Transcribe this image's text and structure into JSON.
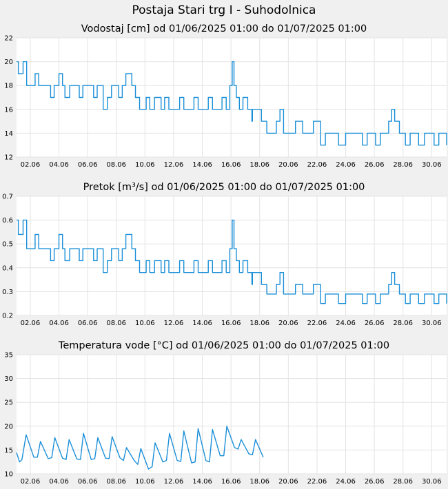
{
  "page": {
    "title": "Postaja Stari trg I - Suhodolnica"
  },
  "colors": {
    "series": "#1a8fd8",
    "grid": "#e3e3e3",
    "panel": "#ffffff",
    "background": "#f0f0f0",
    "text": "#000000"
  },
  "x_axis": {
    "start": "2025-06-01T01:00",
    "end": "2025-07-01T01:00",
    "tick_labels": [
      "02.06",
      "04.06",
      "06.06",
      "08.06",
      "10.06",
      "12.06",
      "14.06",
      "16.06",
      "18.06",
      "20.06",
      "22.06",
      "24.06",
      "26.06",
      "28.06",
      "30.06"
    ],
    "tick_dates": [
      "2025-06-02",
      "2025-06-04",
      "2025-06-06",
      "2025-06-08",
      "2025-06-10",
      "2025-06-12",
      "2025-06-14",
      "2025-06-16",
      "2025-06-18",
      "2025-06-20",
      "2025-06-22",
      "2025-06-24",
      "2025-06-26",
      "2025-06-28",
      "2025-06-30"
    ]
  },
  "chart_data": [
    {
      "type": "line",
      "title": "Vodostaj [cm] od 01/06/2025 01:00 do 01/07/2025 01:00",
      "ylim": [
        12,
        22
      ],
      "yticks": [
        12,
        14,
        16,
        18,
        20,
        22
      ],
      "grid": true,
      "step": true,
      "series": [
        {
          "x": [
            "2025-06-01T01:00",
            "2025-06-01T04:00",
            "2025-06-01T12:00",
            "2025-06-01T18:00",
            "2025-06-02T03:00",
            "2025-06-02T08:00",
            "2025-06-02T14:00",
            "2025-06-03T03:00",
            "2025-06-03T10:00",
            "2025-06-03T16:00",
            "2025-06-04T00:00",
            "2025-06-04T06:00",
            "2025-06-04T10:00",
            "2025-06-04T18:00",
            "2025-06-05T04:00",
            "2025-06-05T10:00",
            "2025-06-05T16:00",
            "2025-06-06T03:00",
            "2025-06-06T10:00",
            "2025-06-06T16:00",
            "2025-06-07T02:00",
            "2025-06-07T09:00",
            "2025-06-07T16:00",
            "2025-06-08T04:00",
            "2025-06-08T10:00",
            "2025-06-08T16:00",
            "2025-06-09T02:00",
            "2025-06-09T08:00",
            "2025-06-09T15:00",
            "2025-06-10T02:00",
            "2025-06-10T08:00",
            "2025-06-10T16:00",
            "2025-06-11T03:00",
            "2025-06-11T09:00",
            "2025-06-11T16:00",
            "2025-06-12T04:00",
            "2025-06-12T10:00",
            "2025-06-12T17:00",
            "2025-06-13T04:00",
            "2025-06-13T10:00",
            "2025-06-13T17:00",
            "2025-06-14T04:00",
            "2025-06-14T10:00",
            "2025-06-14T17:00",
            "2025-06-15T02:00",
            "2025-06-15T09:00",
            "2025-06-15T16:00",
            "2025-06-15T22:00",
            "2025-06-16T02:00",
            "2025-06-16T05:00",
            "2025-06-16T09:00",
            "2025-06-16T14:00",
            "2025-06-16T20:00",
            "2025-06-17T04:00",
            "2025-06-17T11:00",
            "2025-06-17T12:00",
            "2025-06-18T03:00",
            "2025-06-18T12:00",
            "2025-06-19T04:00",
            "2025-06-19T10:00",
            "2025-06-19T16:00",
            "2025-06-20T04:00",
            "2025-06-20T12:00",
            "2025-06-21T00:00",
            "2025-06-21T10:00",
            "2025-06-21T18:00",
            "2025-06-22T06:00",
            "2025-06-22T14:00",
            "2025-06-23T04:00",
            "2025-06-23T12:00",
            "2025-06-24T00:00",
            "2025-06-24T12:00",
            "2025-06-25T04:00",
            "2025-06-25T12:00",
            "2025-06-26T02:00",
            "2025-06-26T10:00",
            "2025-06-27T00:00",
            "2025-06-27T05:00",
            "2025-06-27T10:00",
            "2025-06-27T18:00",
            "2025-06-28T04:00",
            "2025-06-28T12:00",
            "2025-06-29T02:00",
            "2025-06-29T12:00",
            "2025-06-30T04:00",
            "2025-06-30T12:00",
            "2025-07-01T01:00"
          ],
          "values": [
            20,
            19,
            20,
            18,
            18,
            19,
            18,
            18,
            17,
            18,
            19,
            18,
            17,
            18,
            18,
            17,
            18,
            18,
            17,
            18,
            16,
            17,
            18,
            17,
            18,
            19,
            18,
            17,
            16,
            17,
            16,
            17,
            16,
            17,
            16,
            16,
            17,
            16,
            16,
            17,
            16,
            16,
            17,
            16,
            16,
            17,
            16,
            18,
            20,
            18,
            17,
            16,
            17,
            16,
            15,
            16,
            15,
            14,
            15,
            16,
            14,
            14,
            15,
            14,
            14,
            15,
            13,
            14,
            14,
            13,
            14,
            14,
            13,
            14,
            13,
            14,
            15,
            16,
            15,
            14,
            13,
            14,
            13,
            14,
            13,
            14,
            13
          ]
        }
      ]
    },
    {
      "type": "line",
      "title": "Pretok [m³/s] od 01/06/2025 01:00 do 01/07/2025 01:00",
      "ylim": [
        0.2,
        0.7
      ],
      "yticks": [
        0.2,
        0.3,
        0.4,
        0.5,
        0.6,
        0.7
      ],
      "grid": true,
      "step": true,
      "series": [
        {
          "x": [
            "2025-06-01T01:00",
            "2025-06-01T04:00",
            "2025-06-01T12:00",
            "2025-06-01T18:00",
            "2025-06-02T03:00",
            "2025-06-02T08:00",
            "2025-06-02T14:00",
            "2025-06-03T03:00",
            "2025-06-03T10:00",
            "2025-06-03T16:00",
            "2025-06-04T00:00",
            "2025-06-04T06:00",
            "2025-06-04T10:00",
            "2025-06-04T18:00",
            "2025-06-05T04:00",
            "2025-06-05T10:00",
            "2025-06-05T16:00",
            "2025-06-06T03:00",
            "2025-06-06T10:00",
            "2025-06-06T16:00",
            "2025-06-07T02:00",
            "2025-06-07T09:00",
            "2025-06-07T16:00",
            "2025-06-08T04:00",
            "2025-06-08T10:00",
            "2025-06-08T16:00",
            "2025-06-09T02:00",
            "2025-06-09T08:00",
            "2025-06-09T15:00",
            "2025-06-10T02:00",
            "2025-06-10T08:00",
            "2025-06-10T16:00",
            "2025-06-11T03:00",
            "2025-06-11T09:00",
            "2025-06-11T16:00",
            "2025-06-12T04:00",
            "2025-06-12T10:00",
            "2025-06-12T17:00",
            "2025-06-13T04:00",
            "2025-06-13T10:00",
            "2025-06-13T17:00",
            "2025-06-14T04:00",
            "2025-06-14T10:00",
            "2025-06-14T17:00",
            "2025-06-15T02:00",
            "2025-06-15T09:00",
            "2025-06-15T16:00",
            "2025-06-15T22:00",
            "2025-06-16T02:00",
            "2025-06-16T05:00",
            "2025-06-16T09:00",
            "2025-06-16T14:00",
            "2025-06-16T20:00",
            "2025-06-17T04:00",
            "2025-06-17T11:00",
            "2025-06-17T12:00",
            "2025-06-18T03:00",
            "2025-06-18T12:00",
            "2025-06-19T04:00",
            "2025-06-19T10:00",
            "2025-06-19T16:00",
            "2025-06-20T04:00",
            "2025-06-20T12:00",
            "2025-06-21T00:00",
            "2025-06-21T10:00",
            "2025-06-21T18:00",
            "2025-06-22T06:00",
            "2025-06-22T14:00",
            "2025-06-23T04:00",
            "2025-06-23T12:00",
            "2025-06-24T00:00",
            "2025-06-24T12:00",
            "2025-06-25T04:00",
            "2025-06-25T12:00",
            "2025-06-26T02:00",
            "2025-06-26T10:00",
            "2025-06-27T00:00",
            "2025-06-27T05:00",
            "2025-06-27T10:00",
            "2025-06-27T18:00",
            "2025-06-28T04:00",
            "2025-06-28T12:00",
            "2025-06-29T02:00",
            "2025-06-29T12:00",
            "2025-06-30T04:00",
            "2025-06-30T12:00",
            "2025-07-01T01:00"
          ],
          "values": [
            0.6,
            0.54,
            0.6,
            0.48,
            0.48,
            0.54,
            0.48,
            0.48,
            0.43,
            0.48,
            0.54,
            0.48,
            0.43,
            0.48,
            0.48,
            0.43,
            0.48,
            0.48,
            0.43,
            0.48,
            0.38,
            0.43,
            0.48,
            0.43,
            0.48,
            0.54,
            0.48,
            0.43,
            0.38,
            0.43,
            0.38,
            0.43,
            0.38,
            0.43,
            0.38,
            0.38,
            0.43,
            0.38,
            0.38,
            0.43,
            0.38,
            0.38,
            0.43,
            0.38,
            0.38,
            0.43,
            0.38,
            0.48,
            0.6,
            0.48,
            0.43,
            0.38,
            0.43,
            0.38,
            0.33,
            0.38,
            0.33,
            0.29,
            0.33,
            0.38,
            0.29,
            0.29,
            0.33,
            0.29,
            0.29,
            0.33,
            0.25,
            0.29,
            0.29,
            0.25,
            0.29,
            0.29,
            0.25,
            0.29,
            0.25,
            0.29,
            0.33,
            0.38,
            0.33,
            0.29,
            0.25,
            0.29,
            0.25,
            0.29,
            0.25,
            0.29,
            0.25
          ]
        }
      ]
    },
    {
      "type": "line",
      "title": "Temperatura vode [°C] od 01/06/2025 01:00 do 01/07/2025 01:00",
      "ylim": [
        10,
        35
      ],
      "yticks": [
        10,
        15,
        20,
        25,
        30,
        35
      ],
      "grid": true,
      "step": false,
      "series": [
        {
          "x": [
            "2025-06-01T01:00",
            "2025-06-01T06:00",
            "2025-06-01T10:00",
            "2025-06-01T17:00",
            "2025-06-02T06:00",
            "2025-06-02T12:00",
            "2025-06-02T17:00",
            "2025-06-03T06:00",
            "2025-06-03T12:00",
            "2025-06-03T17:00",
            "2025-06-04T06:00",
            "2025-06-04T12:00",
            "2025-06-04T17:00",
            "2025-06-05T06:00",
            "2025-06-05T12:00",
            "2025-06-05T17:00",
            "2025-06-06T06:00",
            "2025-06-06T12:00",
            "2025-06-06T17:00",
            "2025-06-07T06:00",
            "2025-06-07T12:00",
            "2025-06-07T17:00",
            "2025-06-08T06:00",
            "2025-06-08T12:00",
            "2025-06-08T17:00",
            "2025-06-09T06:00",
            "2025-06-09T12:00",
            "2025-06-09T17:00",
            "2025-06-10T06:00",
            "2025-06-10T12:00",
            "2025-06-10T17:00",
            "2025-06-11T06:00",
            "2025-06-11T12:00",
            "2025-06-11T17:00",
            "2025-06-12T06:00",
            "2025-06-12T12:00",
            "2025-06-12T17:00",
            "2025-06-13T06:00",
            "2025-06-13T12:00",
            "2025-06-13T17:00",
            "2025-06-14T06:00",
            "2025-06-14T12:00",
            "2025-06-14T17:00",
            "2025-06-15T06:00",
            "2025-06-15T12:00",
            "2025-06-15T17:00",
            "2025-06-16T06:00",
            "2025-06-16T12:00",
            "2025-06-16T17:00",
            "2025-06-17T06:00",
            "2025-06-17T12:00",
            "2025-06-17T17:00",
            "2025-06-18T06:00"
          ],
          "values": [
            14.5,
            12.5,
            13.0,
            18.2,
            13.5,
            13.5,
            16.8,
            13.2,
            13.4,
            17.6,
            13.3,
            13.0,
            17.2,
            13.1,
            13.0,
            18.5,
            13.0,
            13.2,
            17.6,
            13.3,
            13.2,
            17.8,
            13.4,
            12.8,
            15.5,
            12.8,
            12.0,
            15.3,
            11.0,
            11.5,
            16.5,
            12.5,
            12.8,
            18.5,
            12.8,
            12.6,
            19.0,
            12.3,
            12.5,
            19.5,
            12.8,
            12.5,
            19.3,
            13.8,
            13.8,
            20.0,
            15.5,
            15.2,
            17.2,
            14.2,
            14.0,
            17.2,
            13.5
          ]
        }
      ]
    }
  ]
}
